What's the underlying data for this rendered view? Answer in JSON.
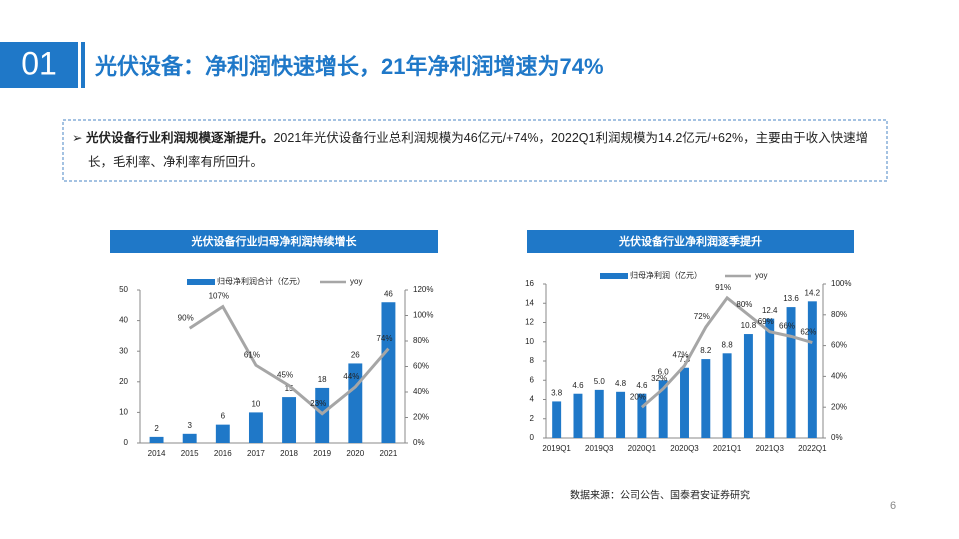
{
  "header": {
    "number": "01",
    "title": "光伏设备：净利润快速增长，21年净利润增速为74%"
  },
  "summary": {
    "bold": "光伏设备行业利润规模逐渐提升。",
    "text": "2021年光伏设备行业总利润规模为46亿元/+74%，2022Q1利润规模为14.2亿元/+62%，主要由于收入快速增长，毛利率、净利率有所回升。"
  },
  "source": "数据来源：公司公告、国泰君安证券研究",
  "page_number": "6",
  "chart_data": [
    {
      "type": "bar",
      "title": "光伏设备行业归母净利润持续增长",
      "categories": [
        "2014",
        "2015",
        "2016",
        "2017",
        "2018",
        "2019",
        "2020",
        "2021"
      ],
      "series": [
        {
          "name": "归母净利润合计（亿元）",
          "color": "#1f78c8",
          "values": [
            2,
            3,
            6,
            10,
            15,
            18,
            26,
            46
          ]
        },
        {
          "name": "yoy",
          "type": "line",
          "axis": "y2",
          "color": "#a6a6a6",
          "values": [
            null,
            90,
            107,
            61,
            45,
            23,
            44,
            74
          ],
          "value_labels": [
            null,
            "90%",
            "107%",
            "61%",
            "45%",
            "23%",
            "44%",
            "74%"
          ]
        }
      ],
      "ylim": [
        0,
        50
      ],
      "yticks": [
        0,
        10,
        20,
        30,
        40,
        50
      ],
      "y2lim": [
        0,
        120
      ],
      "y2ticks": [
        {
          "value": 0,
          "label": "0%"
        },
        {
          "value": 20,
          "label": "20%"
        },
        {
          "value": 40,
          "label": "40%"
        },
        {
          "value": 60,
          "label": "60%"
        },
        {
          "value": 80,
          "label": "80%"
        },
        {
          "value": 100,
          "label": "100%"
        },
        {
          "value": 120,
          "label": "120%"
        }
      ]
    },
    {
      "type": "bar",
      "title": "光伏设备行业净利润逐季提升",
      "categories": [
        "2019Q1",
        null,
        "2019Q3",
        null,
        "2020Q1",
        null,
        "2020Q3",
        null,
        "2021Q1",
        null,
        "2021Q3",
        null,
        "2022Q1"
      ],
      "series": [
        {
          "name": "归母净利润（亿元）",
          "color": "#1f78c8",
          "values": [
            3.8,
            4.6,
            5.0,
            4.8,
            4.6,
            6.0,
            7.3,
            8.2,
            8.8,
            10.8,
            12.4,
            13.6,
            14.2
          ],
          "value_labels": [
            "3.8",
            "4.6",
            "5.0",
            "4.8",
            "4.6",
            "6.0",
            "7.3",
            "8.2",
            "8.8",
            "10.8",
            "12.4",
            "13.6",
            "14.2"
          ]
        },
        {
          "name": "yoy",
          "type": "line",
          "axis": "y2",
          "color": "#a6a6a6",
          "values": [
            null,
            null,
            null,
            null,
            20,
            32,
            47,
            72,
            91,
            80,
            69,
            66,
            62
          ],
          "value_labels": [
            null,
            null,
            null,
            null,
            "20%",
            "32%",
            "47%",
            "72%",
            "91%",
            "80%",
            "69%",
            "66%",
            "62%"
          ]
        }
      ],
      "ylim": [
        0,
        16
      ],
      "yticks": [
        0,
        2,
        4,
        6,
        8,
        10,
        12,
        14,
        16
      ],
      "y2lim": [
        0,
        100
      ],
      "y2ticks": [
        {
          "value": 0,
          "label": "0%"
        },
        {
          "value": 20,
          "label": "20%"
        },
        {
          "value": 40,
          "label": "40%"
        },
        {
          "value": 60,
          "label": "60%"
        },
        {
          "value": 80,
          "label": "80%"
        },
        {
          "value": 100,
          "label": "100%"
        }
      ]
    }
  ]
}
